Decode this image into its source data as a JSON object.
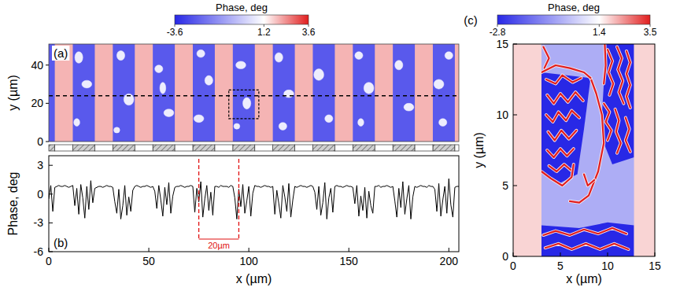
{
  "chart_data": [
    {
      "type": "heatmap",
      "title": "(a)",
      "y_label": "y (µm)",
      "xlim": [
        0,
        205
      ],
      "ylim": [
        0,
        51
      ],
      "yticks": [
        0,
        20,
        40
      ],
      "tick_labels": "y",
      "colorbar": {
        "label": "Phase, deg",
        "range": [
          -3.6,
          3.6
        ],
        "ticks": [
          -3.6,
          1.2,
          3.6
        ]
      },
      "background_value": -2.5,
      "stripe_value": 2.0,
      "blob_value": 0.8,
      "stripes": [
        [
          3,
          12
        ],
        [
          23,
          32
        ],
        [
          43,
          52
        ],
        [
          63,
          72
        ],
        [
          83,
          92
        ],
        [
          103,
          112
        ],
        [
          123,
          132
        ],
        [
          143,
          152
        ],
        [
          163,
          172
        ],
        [
          183,
          192
        ],
        [
          203,
          205
        ]
      ],
      "blobs": [
        [
          15,
          44,
          2,
          3
        ],
        [
          19,
          30,
          2.5,
          2
        ],
        [
          14,
          10,
          1.5,
          2
        ],
        [
          36,
          45,
          2,
          2.5
        ],
        [
          40,
          22,
          2.5,
          3
        ],
        [
          34,
          6,
          1.5,
          1.5
        ],
        [
          55,
          38,
          2,
          2
        ],
        [
          60,
          15,
          2.5,
          2
        ],
        [
          57,
          28,
          1.5,
          3
        ],
        [
          76,
          46,
          2,
          2
        ],
        [
          80,
          32,
          2,
          2.5
        ],
        [
          75,
          12,
          2.5,
          2
        ],
        [
          96,
          40,
          2.5,
          2
        ],
        [
          99,
          20,
          2,
          3
        ],
        [
          94,
          8,
          1.5,
          1.5
        ],
        [
          115,
          44,
          2,
          2.5
        ],
        [
          120,
          25,
          2.5,
          2
        ],
        [
          117,
          8,
          2,
          2
        ],
        [
          135,
          35,
          2.5,
          3
        ],
        [
          140,
          12,
          2,
          2
        ],
        [
          155,
          45,
          2,
          2
        ],
        [
          160,
          28,
          2.5,
          3
        ],
        [
          156,
          10,
          1.5,
          2
        ],
        [
          175,
          40,
          2,
          2.5
        ],
        [
          180,
          18,
          2.5,
          2
        ],
        [
          195,
          30,
          2.5,
          2.5
        ],
        [
          200,
          45,
          2,
          2
        ],
        [
          197,
          10,
          2,
          2
        ]
      ],
      "profile_y": 24,
      "zoom_box": [
        90,
        105,
        12,
        27
      ]
    },
    {
      "type": "line",
      "title": "(b)",
      "x_label": "x (µm)",
      "y_label": "Phase, deg",
      "xlim": [
        0,
        205
      ],
      "ylim": [
        -6,
        4
      ],
      "xticks": [
        0,
        50,
        100,
        150,
        200
      ],
      "yticks": [
        -6,
        -3,
        0,
        3
      ],
      "color": "#000000",
      "annotations": [
        {
          "text": "20µm",
          "x": [
            75,
            95
          ]
        }
      ],
      "x": [
        0,
        1,
        2,
        3,
        4,
        5,
        6,
        7,
        8,
        9,
        10,
        11,
        12,
        13,
        14,
        15,
        16,
        17,
        18,
        19,
        20,
        21,
        22,
        23,
        24,
        25,
        26,
        27,
        28,
        29,
        30,
        31,
        32,
        33,
        34,
        35,
        36,
        37,
        38,
        39,
        40,
        41,
        42,
        43,
        44,
        45,
        46,
        47,
        48,
        49,
        50,
        51,
        52,
        53,
        54,
        55,
        56,
        57,
        58,
        59,
        60,
        61,
        62,
        63,
        64,
        65,
        66,
        67,
        68,
        69,
        70,
        71,
        72,
        73,
        74,
        75,
        76,
        77,
        78,
        79,
        80,
        81,
        82,
        83,
        84,
        85,
        86,
        87,
        88,
        89,
        90,
        91,
        92,
        93,
        94,
        95,
        96,
        97,
        98,
        99,
        100,
        101,
        102,
        103,
        104,
        105,
        106,
        107,
        108,
        109,
        110,
        111,
        112,
        113,
        114,
        115,
        116,
        117,
        118,
        119,
        120,
        121,
        122,
        123,
        124,
        125,
        126,
        127,
        128,
        129,
        130,
        131,
        132,
        133,
        134,
        135,
        136,
        137,
        138,
        139,
        140,
        141,
        142,
        143,
        144,
        145,
        146,
        147,
        148,
        149,
        150,
        151,
        152,
        153,
        154,
        155,
        156,
        157,
        158,
        159,
        160,
        161,
        162,
        163,
        164,
        165,
        166,
        167,
        168,
        169,
        170,
        171,
        172,
        173,
        174,
        175,
        176,
        177,
        178,
        179,
        180,
        181,
        182,
        183,
        184,
        185,
        186,
        187,
        188,
        189,
        190,
        191,
        192,
        193,
        194,
        195,
        196,
        197,
        198,
        199,
        200,
        201,
        202,
        203,
        204,
        205
      ],
      "values": [
        -0.5,
        0.9,
        -1.8,
        0.7,
        0.8,
        0.9,
        0.8,
        0.8,
        0.9,
        0.8,
        0.7,
        0.8,
        0.9,
        -1.2,
        0.6,
        -2.1,
        1.0,
        -0.4,
        -2.5,
        0.8,
        -1.6,
        1.4,
        -0.9,
        0.6,
        0.7,
        0.8,
        0.8,
        0.7,
        0.8,
        0.9,
        0.8,
        0.8,
        0.7,
        -0.8,
        -2.0,
        0.5,
        -2.6,
        -1.2,
        0.9,
        -2.2,
        -0.3,
        -1.8,
        0.4,
        0.8,
        0.9,
        0.8,
        0.7,
        0.8,
        0.8,
        0.9,
        0.8,
        0.7,
        0.8,
        0.3,
        -1.5,
        0.9,
        -0.6,
        -2.3,
        0.7,
        -1.1,
        1.2,
        -2.0,
        -0.2,
        0.7,
        0.8,
        0.8,
        0.9,
        0.8,
        0.7,
        0.8,
        0.8,
        0.9,
        0.8,
        -1.9,
        0.6,
        -0.8,
        1.3,
        -2.4,
        -0.5,
        0.9,
        -1.7,
        0.2,
        -2.2,
        0.8,
        0.8,
        0.7,
        0.9,
        0.8,
        0.8,
        0.8,
        0.7,
        0.9,
        0.8,
        -0.4,
        -2.6,
        0.5,
        -1.3,
        1.0,
        -2.0,
        -0.7,
        0.8,
        -2.3,
        0.1,
        0.9,
        0.8,
        0.8,
        0.7,
        0.8,
        0.9,
        0.8,
        0.8,
        0.7,
        0.8,
        -2.1,
        0.4,
        -1.0,
        -2.5,
        0.9,
        -0.3,
        -1.8,
        1.1,
        -2.4,
        -0.6,
        0.8,
        0.7,
        0.8,
        0.9,
        0.8,
        0.8,
        0.7,
        0.8,
        0.9,
        0.8,
        0.2,
        -1.6,
        0.8,
        -2.2,
        -0.9,
        1.2,
        -2.6,
        -0.4,
        0.6,
        -1.9,
        0.8,
        0.9,
        0.8,
        0.8,
        0.7,
        0.8,
        0.9,
        0.8,
        0.8,
        0.7,
        -1.0,
        0.9,
        -2.3,
        -0.2,
        -1.7,
        0.7,
        -2.5,
        0.3,
        -1.2,
        -2.0,
        0.8,
        0.8,
        0.9,
        0.7,
        0.8,
        0.8,
        0.9,
        0.8,
        0.7,
        0.8,
        -0.7,
        -2.4,
        0.6,
        -1.4,
        1.3,
        -2.1,
        -0.5,
        0.9,
        -2.6,
        -0.3,
        0.8,
        0.7,
        0.8,
        0.9,
        0.8,
        0.8,
        0.7,
        0.9,
        0.8,
        0.8,
        0.5,
        -1.8,
        1.1,
        -2.3,
        -0.6,
        0.8,
        -2.0,
        1.6,
        -1.1,
        -2.4,
        0.7,
        0.8,
        0.8
      ]
    },
    {
      "type": "heatmap",
      "title": "(c)",
      "x_label": "x (µm)",
      "y_label": "y (µm)",
      "xlim": [
        0,
        15
      ],
      "ylim": [
        0,
        15
      ],
      "xticks": [
        0,
        5,
        10,
        15
      ],
      "yticks": [
        0,
        5,
        10,
        15
      ],
      "colorbar": {
        "label": "Phase, deg",
        "range": [
          -2.8,
          3.5
        ],
        "ticks": [
          -2.8,
          1.4,
          3.5
        ]
      },
      "background_value": -0.2,
      "stripe_value": 1.8,
      "domain_value": -2.8,
      "wall_value": 3.5,
      "stripes": [
        [
          0,
          3
        ],
        [
          12.8,
          15
        ]
      ],
      "domains": [
        [
          [
            3,
            13
          ],
          [
            8.2,
            12.6
          ],
          [
            7.5,
            9
          ],
          [
            6.8,
            5.8
          ],
          [
            5,
            5.2
          ],
          [
            3,
            6
          ]
        ],
        [
          [
            9.7,
            15
          ],
          [
            12.8,
            15
          ],
          [
            12.8,
            7
          ],
          [
            10.5,
            6.5
          ],
          [
            9.6,
            8
          ],
          [
            9.4,
            10
          ],
          [
            9.6,
            12.2
          ]
        ],
        [
          [
            3,
            0
          ],
          [
            12.8,
            0
          ],
          [
            12.8,
            2.2
          ],
          [
            10,
            2.4
          ],
          [
            7,
            2.0
          ],
          [
            3,
            2.2
          ]
        ]
      ],
      "domain_walls": [
        [
          [
            3.5,
            12.5
          ],
          [
            4.5,
            12.2
          ],
          [
            5.2,
            12.8
          ],
          [
            6.3,
            12.3
          ],
          [
            7.2,
            12.6
          ]
        ],
        [
          [
            3.6,
            11.4
          ],
          [
            4.3,
            10.8
          ],
          [
            5.0,
            11.5
          ],
          [
            5.8,
            10.9
          ],
          [
            6.6,
            11.6
          ],
          [
            7.4,
            11.0
          ]
        ],
        [
          [
            3.5,
            10.0
          ],
          [
            4.2,
            9.5
          ],
          [
            4.8,
            10.2
          ],
          [
            5.6,
            9.6
          ],
          [
            6.2,
            10.3
          ],
          [
            7.0,
            9.8
          ]
        ],
        [
          [
            3.7,
            8.8
          ],
          [
            4.4,
            8.2
          ],
          [
            5.1,
            8.9
          ],
          [
            5.9,
            8.3
          ],
          [
            6.7,
            8.9
          ]
        ],
        [
          [
            3.6,
            7.5
          ],
          [
            4.3,
            7.0
          ],
          [
            5.0,
            7.6
          ],
          [
            5.7,
            7.1
          ],
          [
            6.4,
            7.6
          ]
        ],
        [
          [
            3.8,
            6.4
          ],
          [
            4.6,
            6.0
          ],
          [
            5.4,
            6.5
          ],
          [
            6.1,
            6.1
          ]
        ],
        [
          [
            10.0,
            14.6
          ],
          [
            10.5,
            13.8
          ],
          [
            10.1,
            13.0
          ],
          [
            10.6,
            12.2
          ],
          [
            10.2,
            11.4
          ]
        ],
        [
          [
            11.0,
            14.8
          ],
          [
            11.5,
            14.0
          ],
          [
            11.1,
            13.2
          ],
          [
            11.6,
            12.4
          ],
          [
            11.2,
            11.6
          ],
          [
            11.7,
            10.8
          ]
        ],
        [
          [
            12.0,
            14.5
          ],
          [
            12.4,
            13.7
          ],
          [
            12.0,
            12.9
          ],
          [
            12.4,
            12.1
          ],
          [
            12.0,
            11.3
          ],
          [
            12.4,
            10.5
          ]
        ],
        [
          [
            9.6,
            10.8
          ],
          [
            10.2,
            10.2
          ],
          [
            9.8,
            9.5
          ],
          [
            10.4,
            8.9
          ],
          [
            10.0,
            8.2
          ]
        ],
        [
          [
            10.8,
            10.4
          ],
          [
            11.2,
            9.6
          ],
          [
            10.9,
            8.8
          ],
          [
            11.4,
            8.0
          ],
          [
            11.0,
            7.3
          ]
        ],
        [
          [
            11.9,
            9.8
          ],
          [
            12.3,
            9.0
          ],
          [
            11.9,
            8.2
          ],
          [
            12.4,
            7.4
          ]
        ],
        [
          [
            3.2,
            14.8
          ],
          [
            3.8,
            14.0
          ],
          [
            3.3,
            13.3
          ]
        ],
        [
          [
            3.2,
            1.5
          ],
          [
            4.5,
            1.8
          ],
          [
            6.0,
            1.5
          ],
          [
            7.5,
            1.9
          ],
          [
            9.0,
            1.6
          ],
          [
            10.5,
            2.0
          ],
          [
            12.0,
            1.6
          ]
        ],
        [
          [
            3.4,
            0.6
          ],
          [
            4.8,
            0.9
          ],
          [
            6.2,
            0.5
          ],
          [
            7.7,
            0.9
          ],
          [
            9.2,
            0.5
          ],
          [
            10.7,
            0.9
          ],
          [
            12.2,
            0.5
          ]
        ],
        [
          [
            3.0,
            6.0
          ],
          [
            4.0,
            5.5
          ],
          [
            5.2,
            5.0
          ],
          [
            6.2,
            5.6
          ],
          [
            6.4,
            6.5
          ]
        ],
        [
          [
            8.2,
            12.6
          ],
          [
            8.8,
            11.5
          ],
          [
            9.4,
            10.0
          ],
          [
            9.6,
            8.0
          ],
          [
            9.0,
            6.0
          ],
          [
            8.0,
            4.3
          ],
          [
            7.0,
            3.8
          ],
          [
            6.0,
            3.9
          ]
        ],
        [
          [
            7.5,
            5.8
          ],
          [
            7.9,
            5.0
          ],
          [
            8.6,
            5.4
          ]
        ],
        [
          [
            3.0,
            13.0
          ],
          [
            4.5,
            13.5
          ],
          [
            6.0,
            13.3
          ],
          [
            7.5,
            13.0
          ],
          [
            8.2,
            12.6
          ]
        ],
        [
          [
            9.6,
            12.2
          ],
          [
            9.8,
            13.5
          ],
          [
            9.7,
            15.0
          ]
        ]
      ]
    }
  ]
}
